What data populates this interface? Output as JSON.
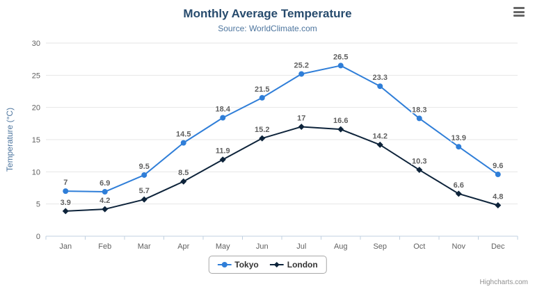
{
  "chart": {
    "title": "Monthly Average Temperature",
    "subtitle": "Source: WorldClimate.com",
    "credits": "Highcharts.com",
    "menu_icon": "hamburger-menu-icon"
  },
  "chart_data": {
    "type": "line",
    "title": "Monthly Average Temperature",
    "subtitle": "Source: WorldClimate.com",
    "categories": [
      "Jan",
      "Feb",
      "Mar",
      "Apr",
      "May",
      "Jun",
      "Jul",
      "Aug",
      "Sep",
      "Oct",
      "Nov",
      "Dec"
    ],
    "series": [
      {
        "name": "Tokyo",
        "color": "#2f7ed8",
        "marker": "circle",
        "values": [
          7,
          6.9,
          9.5,
          14.5,
          18.4,
          21.5,
          25.2,
          26.5,
          23.3,
          18.3,
          13.9,
          9.6
        ]
      },
      {
        "name": "London",
        "color": "#0d233a",
        "marker": "diamond",
        "values": [
          3.9,
          4.2,
          5.7,
          8.5,
          11.9,
          15.2,
          17,
          16.6,
          14.2,
          10.3,
          6.6,
          4.8
        ]
      }
    ],
    "xlabel": "",
    "ylabel": "Temperature (°C)",
    "ylim": [
      0,
      30
    ],
    "ytick_step": 5,
    "grid": true,
    "data_labels": true,
    "legend_position": "bottom",
    "colors": {
      "gridline": "#e6e6e6",
      "axis_line": "#c0d0e0",
      "tick_label": "#606060",
      "data_label": "#606060",
      "axis_title": "#4d759e"
    }
  }
}
